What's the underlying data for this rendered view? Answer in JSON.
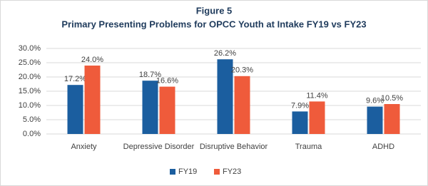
{
  "chart_data": {
    "type": "bar",
    "title": "Figure 5",
    "subtitle": "Primary Presenting Problems for OPCC Youth at Intake  FY19 vs FY23",
    "categories": [
      "Anxiety",
      "Depressive Disorder",
      "Disruptive Behavior",
      "Trauma",
      "ADHD"
    ],
    "series": [
      {
        "name": "FY19",
        "color": "#1b5e9f",
        "values": [
          17.2,
          18.7,
          26.2,
          7.9,
          9.6
        ],
        "value_labels": [
          "17.2%",
          "18.7%",
          "26.2%",
          "7.9%",
          "9.6%"
        ]
      },
      {
        "name": "FY23",
        "color": "#ef5b3b",
        "values": [
          24.0,
          16.6,
          20.3,
          11.4,
          10.5
        ],
        "value_labels": [
          "24.0%",
          "16.6%",
          "20.3%",
          "11.4%",
          "10.5%"
        ]
      }
    ],
    "ylim": [
      0,
      30
    ],
    "yticks": [
      {
        "value": 0,
        "label": "0.0%"
      },
      {
        "value": 5,
        "label": "5.0%"
      },
      {
        "value": 10,
        "label": "10.0%"
      },
      {
        "value": 15,
        "label": "15.0%"
      },
      {
        "value": 20,
        "label": "20.0%"
      },
      {
        "value": 25,
        "label": "25.0%"
      },
      {
        "value": 30,
        "label": "30.0%"
      }
    ],
    "grid": true,
    "legend": "bottom"
  }
}
